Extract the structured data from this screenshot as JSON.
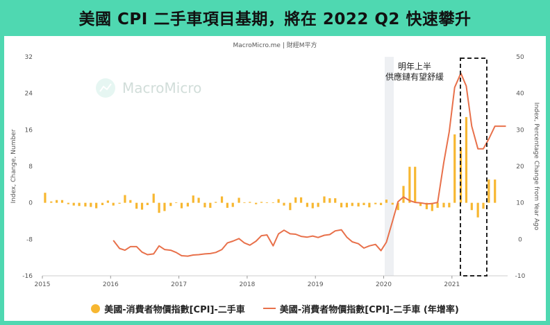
{
  "header": {
    "title": "美國 CPI 二手車項目基期，將在 2022 Q2 快速攀升",
    "attribution": "MacroMicro.me | 財經M平方",
    "watermark": "MacroMicro"
  },
  "annotation": {
    "line1": "明年上半",
    "line2": "供應鏈有望舒緩"
  },
  "legend": {
    "bar_label": "美國-消費者物價指數[CPI]-二手車",
    "line_label": "美國-消費者物價指數[CPI]-二手車 (年增率)"
  },
  "colors": {
    "bar": "#f7b731",
    "line": "#e8704a",
    "background": "#4fd8b1"
  },
  "chart_data": {
    "type": "bar",
    "title": "美國 CPI 二手車項目基期，將在 2022 Q2 快速攀升",
    "ylabel": "Index, Change, Number",
    "y2label": "Index, Percentage Change from Year Ago",
    "ylim": [
      -16,
      32
    ],
    "y2lim": [
      -10,
      50
    ],
    "yticks": [
      -16,
      -8,
      0,
      8,
      16,
      24,
      32
    ],
    "y2ticks": [
      -10,
      0,
      10,
      20,
      30,
      40,
      50
    ],
    "xlim": [
      2015.0,
      2022.0
    ],
    "xticks": [
      "2015",
      "2016",
      "2017",
      "2018",
      "2019",
      "2020",
      "2021"
    ],
    "grid": false,
    "legend_position": "bottom",
    "series": [
      {
        "name": "美國-消費者物價指數[CPI]-二手車",
        "type": "bar",
        "axis": "left",
        "x": [
          2015.04,
          2015.13,
          2015.21,
          2015.29,
          2015.38,
          2015.46,
          2015.54,
          2015.63,
          2015.71,
          2015.79,
          2015.88,
          2015.96,
          2016.04,
          2016.13,
          2016.21,
          2016.29,
          2016.38,
          2016.46,
          2016.54,
          2016.63,
          2016.71,
          2016.79,
          2016.88,
          2016.96,
          2017.04,
          2017.13,
          2017.21,
          2017.29,
          2017.38,
          2017.46,
          2017.54,
          2017.63,
          2017.71,
          2017.79,
          2017.88,
          2017.96,
          2018.04,
          2018.13,
          2018.21,
          2018.29,
          2018.38,
          2018.46,
          2018.54,
          2018.63,
          2018.71,
          2018.79,
          2018.88,
          2018.96,
          2019.04,
          2019.13,
          2019.21,
          2019.29,
          2019.38,
          2019.46,
          2019.54,
          2019.63,
          2019.71,
          2019.79,
          2019.88,
          2019.96,
          2020.04,
          2020.13,
          2020.21,
          2020.29,
          2020.38,
          2020.46,
          2020.54,
          2020.63,
          2020.71,
          2020.79,
          2020.88,
          2020.96,
          2021.04,
          2021.13,
          2021.21,
          2021.29,
          2021.38,
          2021.46,
          2021.54,
          2021.63,
          2021.71,
          2021.79
        ],
        "values": [
          2.2,
          0.3,
          0.6,
          0.6,
          -0.3,
          -0.6,
          -0.7,
          -0.8,
          -0.9,
          -1.2,
          -0.5,
          0.5,
          -0.6,
          -0.2,
          1.7,
          0.6,
          -1.3,
          -1.5,
          -0.5,
          2.0,
          -2.2,
          -1.8,
          -0.7,
          0.1,
          -1.2,
          -0.8,
          1.6,
          1.1,
          -1.0,
          -1.1,
          0.2,
          1.4,
          -1.1,
          -0.9,
          1.1,
          0.1,
          0.2,
          -0.3,
          0.2,
          0.1,
          0.1,
          0.8,
          -0.6,
          -1.6,
          1.2,
          1.2,
          -0.9,
          -1.2,
          -0.9,
          1.4,
          1.0,
          1.0,
          -1.0,
          -1.0,
          -0.7,
          -0.8,
          -0.5,
          -1.0,
          -0.3,
          -0.5,
          0.7,
          -0.4,
          -1.6,
          3.7,
          7.9,
          7.9,
          -0.7,
          -1.4,
          -1.8,
          -1.1,
          -1.0,
          -1.0,
          15.0,
          12.1,
          18.8,
          -1.6,
          -3.2,
          -1.3,
          5.1,
          5.1,
          0.0,
          0.0
        ]
      },
      {
        "name": "美國-消費者物價指數[CPI]-二手車 (年增率)",
        "type": "line",
        "axis": "right",
        "x": [
          2016.04,
          2016.13,
          2016.21,
          2016.29,
          2016.38,
          2016.46,
          2016.54,
          2016.63,
          2016.71,
          2016.79,
          2016.88,
          2016.96,
          2017.04,
          2017.13,
          2017.21,
          2017.29,
          2017.38,
          2017.46,
          2017.54,
          2017.63,
          2017.71,
          2017.79,
          2017.88,
          2017.96,
          2018.04,
          2018.13,
          2018.21,
          2018.29,
          2018.38,
          2018.46,
          2018.54,
          2018.63,
          2018.71,
          2018.79,
          2018.88,
          2018.96,
          2019.04,
          2019.13,
          2019.21,
          2019.29,
          2019.38,
          2019.46,
          2019.54,
          2019.63,
          2019.71,
          2019.79,
          2019.88,
          2019.96,
          2020.04,
          2020.13,
          2020.21,
          2020.29,
          2020.38,
          2020.46,
          2020.54,
          2020.63,
          2020.71,
          2020.79,
          2020.88,
          2020.96,
          2021.04,
          2021.13,
          2021.21,
          2021.29,
          2021.38,
          2021.46,
          2021.54,
          2021.63,
          2021.71,
          2021.79
        ],
        "values": [
          -0.3,
          -2.5,
          -3.0,
          -2.0,
          -2.0,
          -3.5,
          -4.2,
          -4.0,
          -1.8,
          -2.8,
          -3.0,
          -3.6,
          -4.5,
          -4.6,
          -4.3,
          -4.2,
          -4.0,
          -3.9,
          -3.6,
          -2.8,
          -1.0,
          -0.5,
          0.2,
          -1.0,
          -1.6,
          -0.5,
          1.0,
          1.2,
          -1.8,
          1.5,
          2.5,
          1.5,
          1.4,
          0.8,
          0.6,
          0.9,
          0.5,
          1.1,
          1.3,
          2.3,
          2.6,
          0.6,
          -0.7,
          -1.2,
          -2.4,
          -1.8,
          -1.4,
          -3.1,
          -0.8,
          5.0,
          10.3,
          11.6,
          10.6,
          10.1,
          10.0,
          9.7,
          9.8,
          10.1,
          21.0,
          29.5,
          41.6,
          45.5,
          42.0,
          31.0,
          24.8,
          24.8,
          27.5,
          31.0,
          31.0,
          31.0
        ]
      }
    ]
  }
}
